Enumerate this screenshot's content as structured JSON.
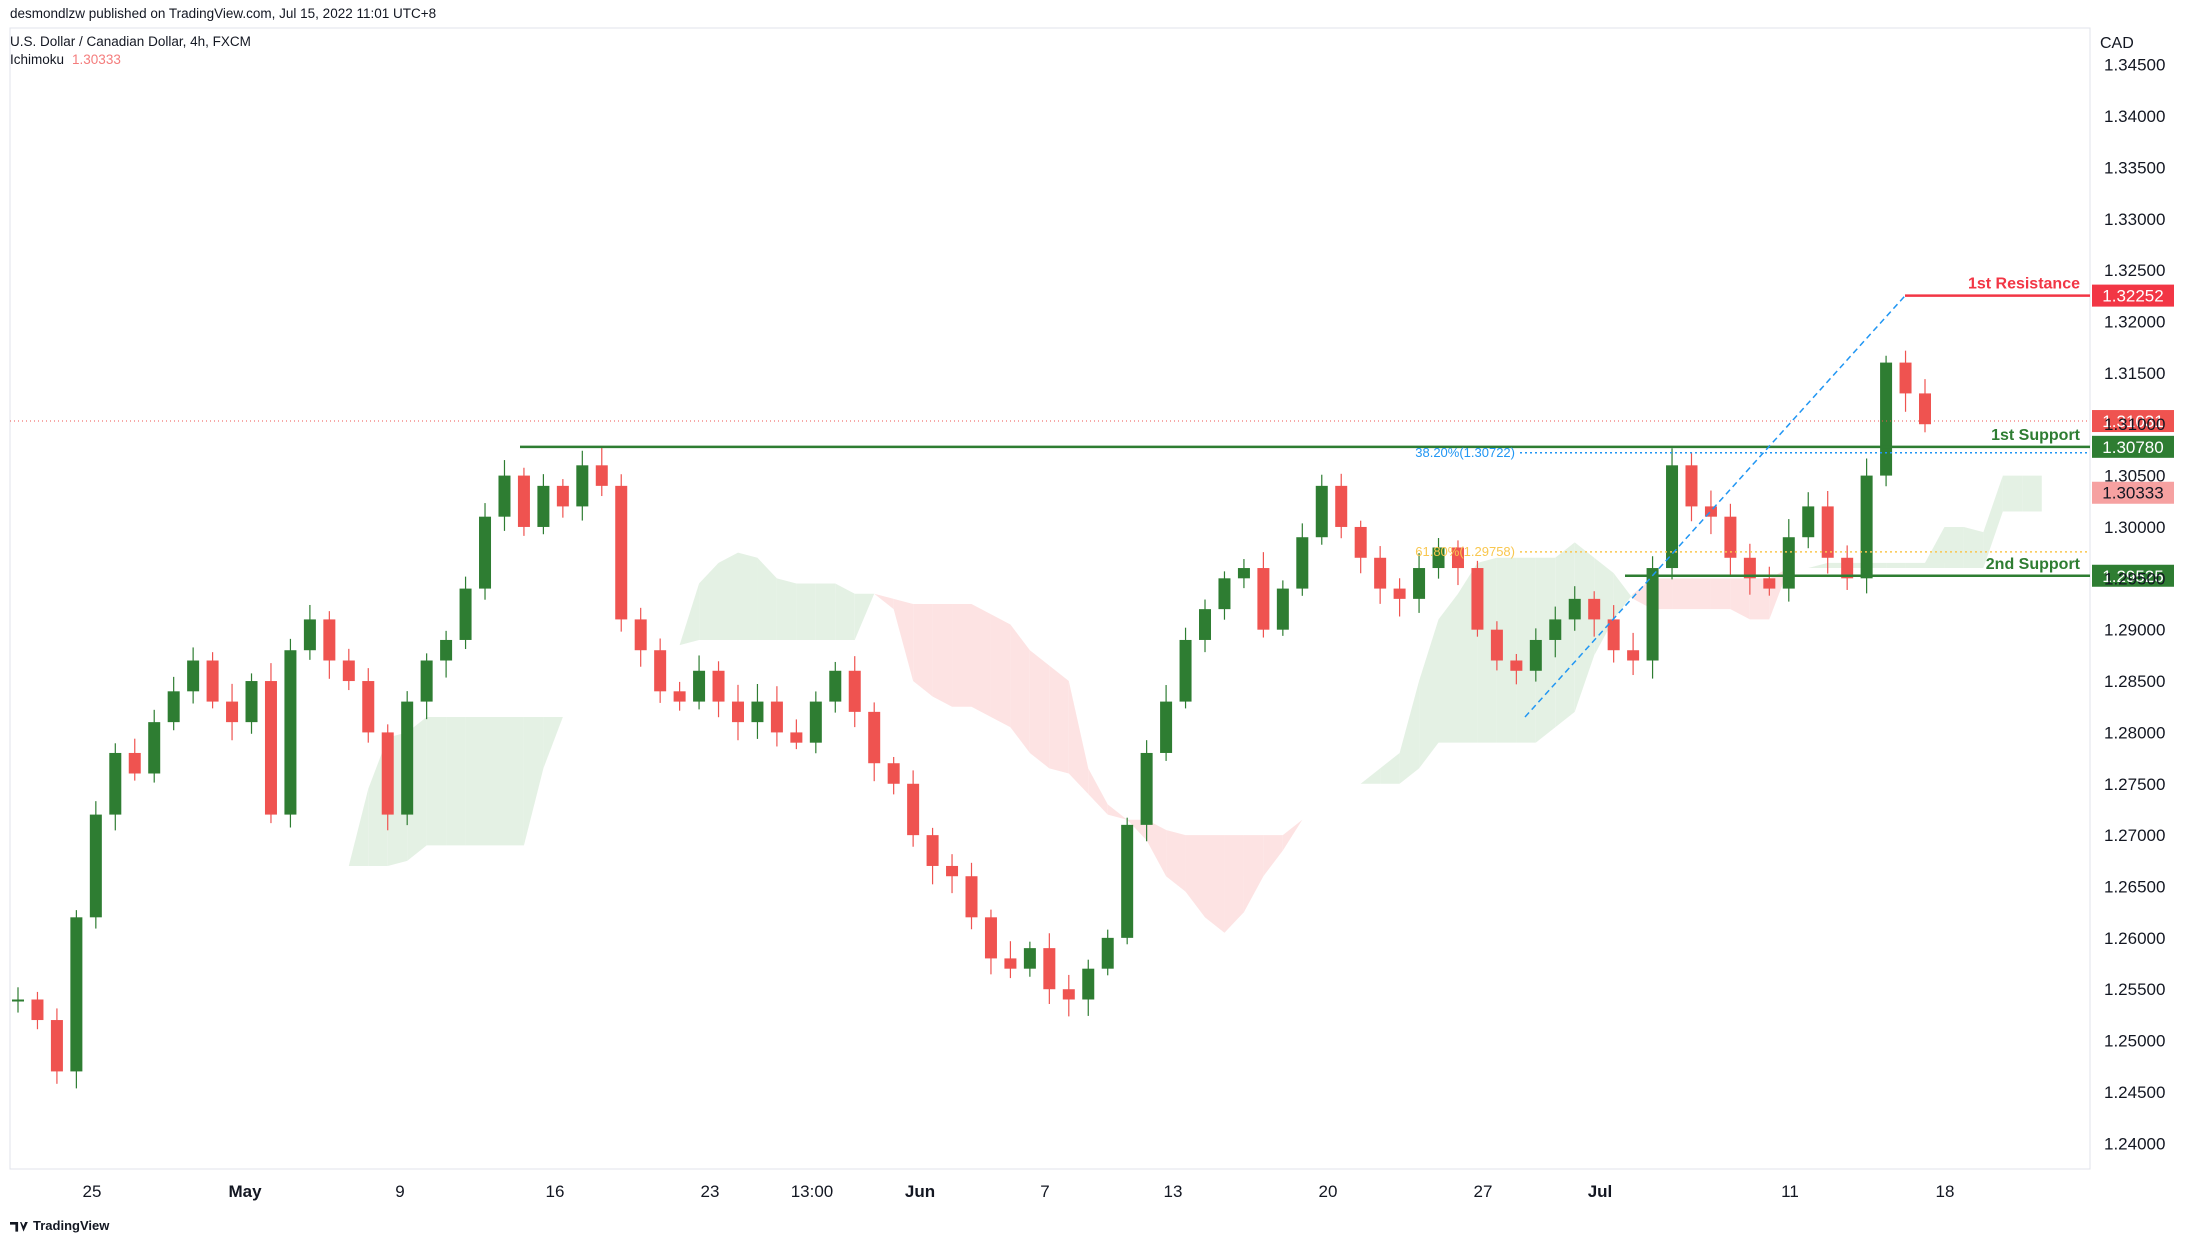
{
  "header": {
    "published": "desmondlzw published on TradingView.com, Jul 15, 2022 11:01 UTC+8",
    "symbol": "U.S. Dollar / Canadian Dollar, 4h, FXCM",
    "indicator_name": "Ichimoku",
    "indicator_value": "1.30333"
  },
  "footer": {
    "brand": "TradingView",
    "brand_icon": "tradingview-logo-icon"
  },
  "colors": {
    "up": "#26a69a",
    "up_candle": "#2e7d32",
    "down": "#ef5350",
    "support": "#2e7d32",
    "resistance": "#f23645",
    "cloud_bull": "#e4f1e4",
    "cloud_bear": "#fde3e3",
    "fib_382": "#2196f3",
    "fib_618": "#f9c74f"
  },
  "chart_data": {
    "type": "candlestick",
    "title": "U.S. Dollar / Canadian Dollar, 4h, FXCM",
    "currency": "CAD",
    "ylim": [
      1.2375,
      1.3475
    ],
    "y_ticks": [
      "1.24000",
      "1.24500",
      "1.25000",
      "1.25500",
      "1.26000",
      "1.26500",
      "1.27000",
      "1.27500",
      "1.28000",
      "1.28500",
      "1.29000",
      "1.29500",
      "1.30000",
      "1.30500",
      "1.31000",
      "1.31500",
      "1.32000",
      "1.32500",
      "1.33000",
      "1.33500",
      "1.34000",
      "1.34500"
    ],
    "x_labels": [
      "25",
      "May",
      "9",
      "16",
      "23",
      "13:00",
      "Jun",
      "7",
      "13",
      "20",
      "27",
      "Jul",
      "11",
      "18"
    ],
    "grid": false,
    "levels": [
      {
        "label": "1st Resistance",
        "value": 1.32252,
        "display": "1.32252",
        "kind": "resistance"
      },
      {
        "label": "1st Support",
        "value": 1.3078,
        "display": "1.30780",
        "kind": "support"
      },
      {
        "label": "2nd Support",
        "value": 1.29525,
        "display": "1.29525",
        "kind": "support"
      }
    ],
    "price_badges": [
      {
        "value": 1.31031,
        "display": "1.31031",
        "kind": "last"
      },
      {
        "value": 1.30333,
        "display": "1.30333",
        "kind": "ichimoku"
      }
    ],
    "fib_levels": [
      {
        "label": "38.20%(1.30722)",
        "value": 1.30722
      },
      {
        "label": "61.80%(1.29758)",
        "value": 1.29758
      }
    ],
    "close_path": [
      1.254,
      1.252,
      1.247,
      1.262,
      1.272,
      1.278,
      1.276,
      1.281,
      1.284,
      1.287,
      1.283,
      1.281,
      1.285,
      1.272,
      1.288,
      1.291,
      1.287,
      1.285,
      1.28,
      1.272,
      1.283,
      1.287,
      1.289,
      1.294,
      1.301,
      1.305,
      1.3,
      1.304,
      1.302,
      1.306,
      1.304,
      1.291,
      1.288,
      1.284,
      1.283,
      1.286,
      1.283,
      1.281,
      1.283,
      1.28,
      1.279,
      1.283,
      1.286,
      1.282,
      1.277,
      1.275,
      1.27,
      1.267,
      1.266,
      1.262,
      1.258,
      1.257,
      1.259,
      1.255,
      1.254,
      1.257,
      1.26,
      1.271,
      1.278,
      1.283,
      1.289,
      1.292,
      1.295,
      1.296,
      1.29,
      1.294,
      1.299,
      1.304,
      1.3,
      1.297,
      1.294,
      1.293,
      1.296,
      1.298,
      1.296,
      1.29,
      1.287,
      1.286,
      1.289,
      1.291,
      1.293,
      1.291,
      1.288,
      1.287,
      1.296,
      1.306,
      1.302,
      1.301,
      1.297,
      1.295,
      1.294,
      1.299,
      1.302,
      1.297,
      1.295,
      1.305,
      1.316,
      1.313,
      1.31
    ]
  }
}
